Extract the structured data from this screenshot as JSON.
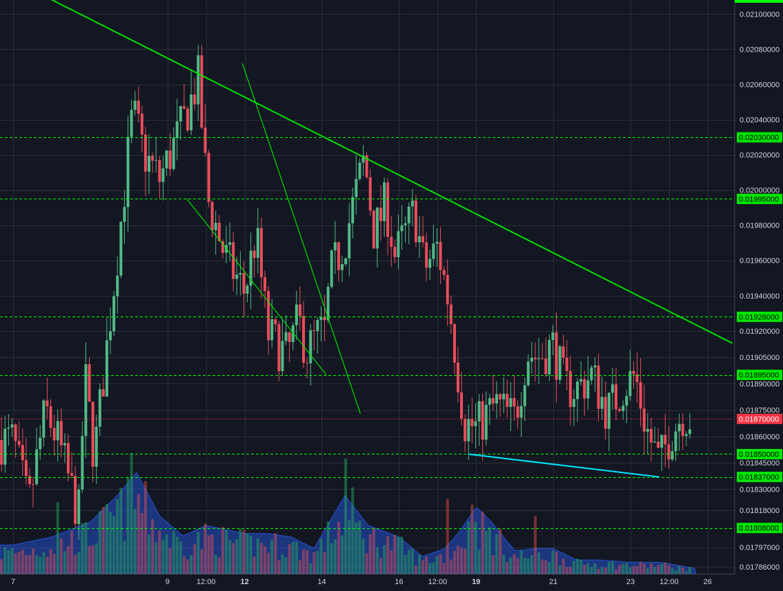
{
  "colors": {
    "background": "#131722",
    "grid": "#2a2e39",
    "axis_text": "#d1d4dc",
    "up": "#53b987",
    "down": "#eb4d5c",
    "level_line": "#00ff00",
    "trend_line": "#00e000",
    "support_line": "#00e5ff",
    "last_price": "#f23645"
  },
  "chart_data": {
    "type": "candlestick",
    "symbol_note": "",
    "y_axis": {
      "side": "right",
      "ylim": [
        0.01782,
        0.02108
      ],
      "ticks": [
        "0.02100000",
        "0.02080000",
        "0.02060000",
        "0.02040000",
        "0.02020000",
        "0.02000000",
        "0.01980000",
        "0.01960000",
        "0.01940000",
        "0.01920000",
        "0.01905000",
        "0.01890000",
        "0.01875000",
        "0.01860000",
        "0.01845000",
        "0.01830000",
        "0.01818000",
        "0.01797000",
        "0.01786000"
      ]
    },
    "x_axis": {
      "tick_labels": [
        "7",
        "9",
        "12:00",
        "12",
        "14",
        "16",
        "12:00",
        "19",
        "21",
        "23",
        "12:00",
        "26"
      ],
      "bold_labels": [
        "12",
        "19"
      ],
      "x_days": [
        7,
        9,
        9.5,
        10,
        11,
        12,
        12.5,
        13,
        14,
        15,
        15.5,
        16
      ],
      "xlim": [
        6.83,
        16.35
      ]
    },
    "levels": [
      {
        "value": 0.0203,
        "label": "0.02030000"
      },
      {
        "value": 0.01995,
        "label": "0.01995000"
      },
      {
        "value": 0.01928,
        "label": "0.01928000"
      },
      {
        "value": 0.01895,
        "label": "0.01895000"
      },
      {
        "value": 0.0185,
        "label": "0.01850000"
      },
      {
        "value": 0.01837,
        "label": "0.01837000"
      },
      {
        "value": 0.01808,
        "label": "0.01808000"
      }
    ],
    "last_price": {
      "value": 0.0187,
      "label": "0.01870000"
    },
    "trendlines": [
      {
        "name": "descending-resistance",
        "color": "trend_line",
        "points": [
          [
            7.28,
            0.02113
          ],
          [
            16.32,
            0.01913
          ]
        ]
      },
      {
        "name": "wedge-upper",
        "color": "trend_line",
        "points": [
          [
            9.97,
            0.02072
          ],
          [
            11.5,
            0.01873
          ]
        ]
      },
      {
        "name": "wedge-lower",
        "color": "trend_line",
        "points": [
          [
            9.25,
            0.01995
          ],
          [
            11.06,
            0.01895
          ]
        ]
      },
      {
        "name": "support-trend",
        "color": "support_line",
        "points": [
          [
            12.9,
            0.0185
          ],
          [
            15.37,
            0.01837
          ]
        ]
      }
    ],
    "price_path": [
      [
        7,
        0.01858
      ],
      [
        7.2,
        0.0182
      ],
      [
        7.42,
        0.01875
      ],
      [
        7.6,
        0.01855
      ],
      [
        7.85,
        0.01815
      ],
      [
        7.93,
        0.01895
      ],
      [
        8.05,
        0.01848
      ],
      [
        8.2,
        0.01905
      ],
      [
        8.38,
        0.01975
      ],
      [
        8.55,
        0.02045
      ],
      [
        8.7,
        0.0202
      ],
      [
        8.9,
        0.02006
      ],
      [
        9.2,
        0.02038
      ],
      [
        9.4,
        0.02063
      ],
      [
        9.52,
        0.01995
      ],
      [
        9.75,
        0.01962
      ],
      [
        10.0,
        0.01942
      ],
      [
        10.15,
        0.01975
      ],
      [
        10.3,
        0.01918
      ],
      [
        10.55,
        0.01906
      ],
      [
        10.7,
        0.01926
      ],
      [
        10.8,
        0.01908
      ],
      [
        10.95,
        0.01918
      ],
      [
        11.05,
        0.0192
      ],
      [
        11.1,
        0.0195
      ],
      [
        11.3,
        0.01972
      ],
      [
        11.55,
        0.02018
      ],
      [
        11.68,
        0.01975
      ],
      [
        11.83,
        0.01993
      ],
      [
        11.95,
        0.01962
      ],
      [
        12.2,
        0.01988
      ],
      [
        12.33,
        0.01955
      ],
      [
        12.5,
        0.01968
      ],
      [
        12.65,
        0.01935
      ],
      [
        12.85,
        0.01868
      ],
      [
        13.0,
        0.01865
      ],
      [
        13.25,
        0.01878
      ],
      [
        13.5,
        0.0187
      ],
      [
        13.66,
        0.01908
      ],
      [
        13.8,
        0.01905
      ],
      [
        14.0,
        0.01912
      ],
      [
        14.15,
        0.01888
      ],
      [
        14.3,
        0.01887
      ],
      [
        14.5,
        0.01895
      ],
      [
        14.7,
        0.01874
      ],
      [
        14.9,
        0.01888
      ],
      [
        15.06,
        0.01895
      ],
      [
        15.2,
        0.01865
      ],
      [
        15.37,
        0.01845
      ],
      [
        15.5,
        0.0186
      ],
      [
        15.67,
        0.01873
      ],
      [
        15.78,
        0.0187
      ]
    ],
    "volume": {
      "ylim": [
        0,
        1.15
      ],
      "profile": [
        [
          7,
          0.25
        ],
        [
          7.5,
          0.32
        ],
        [
          8,
          0.45
        ],
        [
          8.35,
          0.68
        ],
        [
          8.6,
          0.88
        ],
        [
          8.9,
          0.5
        ],
        [
          9.2,
          0.33
        ],
        [
          9.5,
          0.42
        ],
        [
          10,
          0.35
        ],
        [
          10.3,
          0.35
        ],
        [
          10.6,
          0.32
        ],
        [
          10.9,
          0.22
        ],
        [
          11.1,
          0.45
        ],
        [
          11.3,
          0.68
        ],
        [
          11.6,
          0.42
        ],
        [
          12,
          0.32
        ],
        [
          12.3,
          0.15
        ],
        [
          12.6,
          0.22
        ],
        [
          12.8,
          0.38
        ],
        [
          13.0,
          0.58
        ],
        [
          13.2,
          0.45
        ],
        [
          13.5,
          0.2
        ],
        [
          13.8,
          0.22
        ],
        [
          14.0,
          0.22
        ],
        [
          14.3,
          0.12
        ],
        [
          14.6,
          0.12
        ],
        [
          15.0,
          0.1
        ],
        [
          15.4,
          0.1
        ],
        [
          15.8,
          0.05
        ]
      ],
      "spikes": [
        [
          7.6,
          0.62
        ],
        [
          8.35,
          0.65
        ],
        [
          8.55,
          1.05
        ],
        [
          11.3,
          1.0
        ],
        [
          11.38,
          0.75
        ],
        [
          12.65,
          0.65
        ],
        [
          12.95,
          0.6
        ],
        [
          13.75,
          0.5
        ]
      ]
    }
  }
}
